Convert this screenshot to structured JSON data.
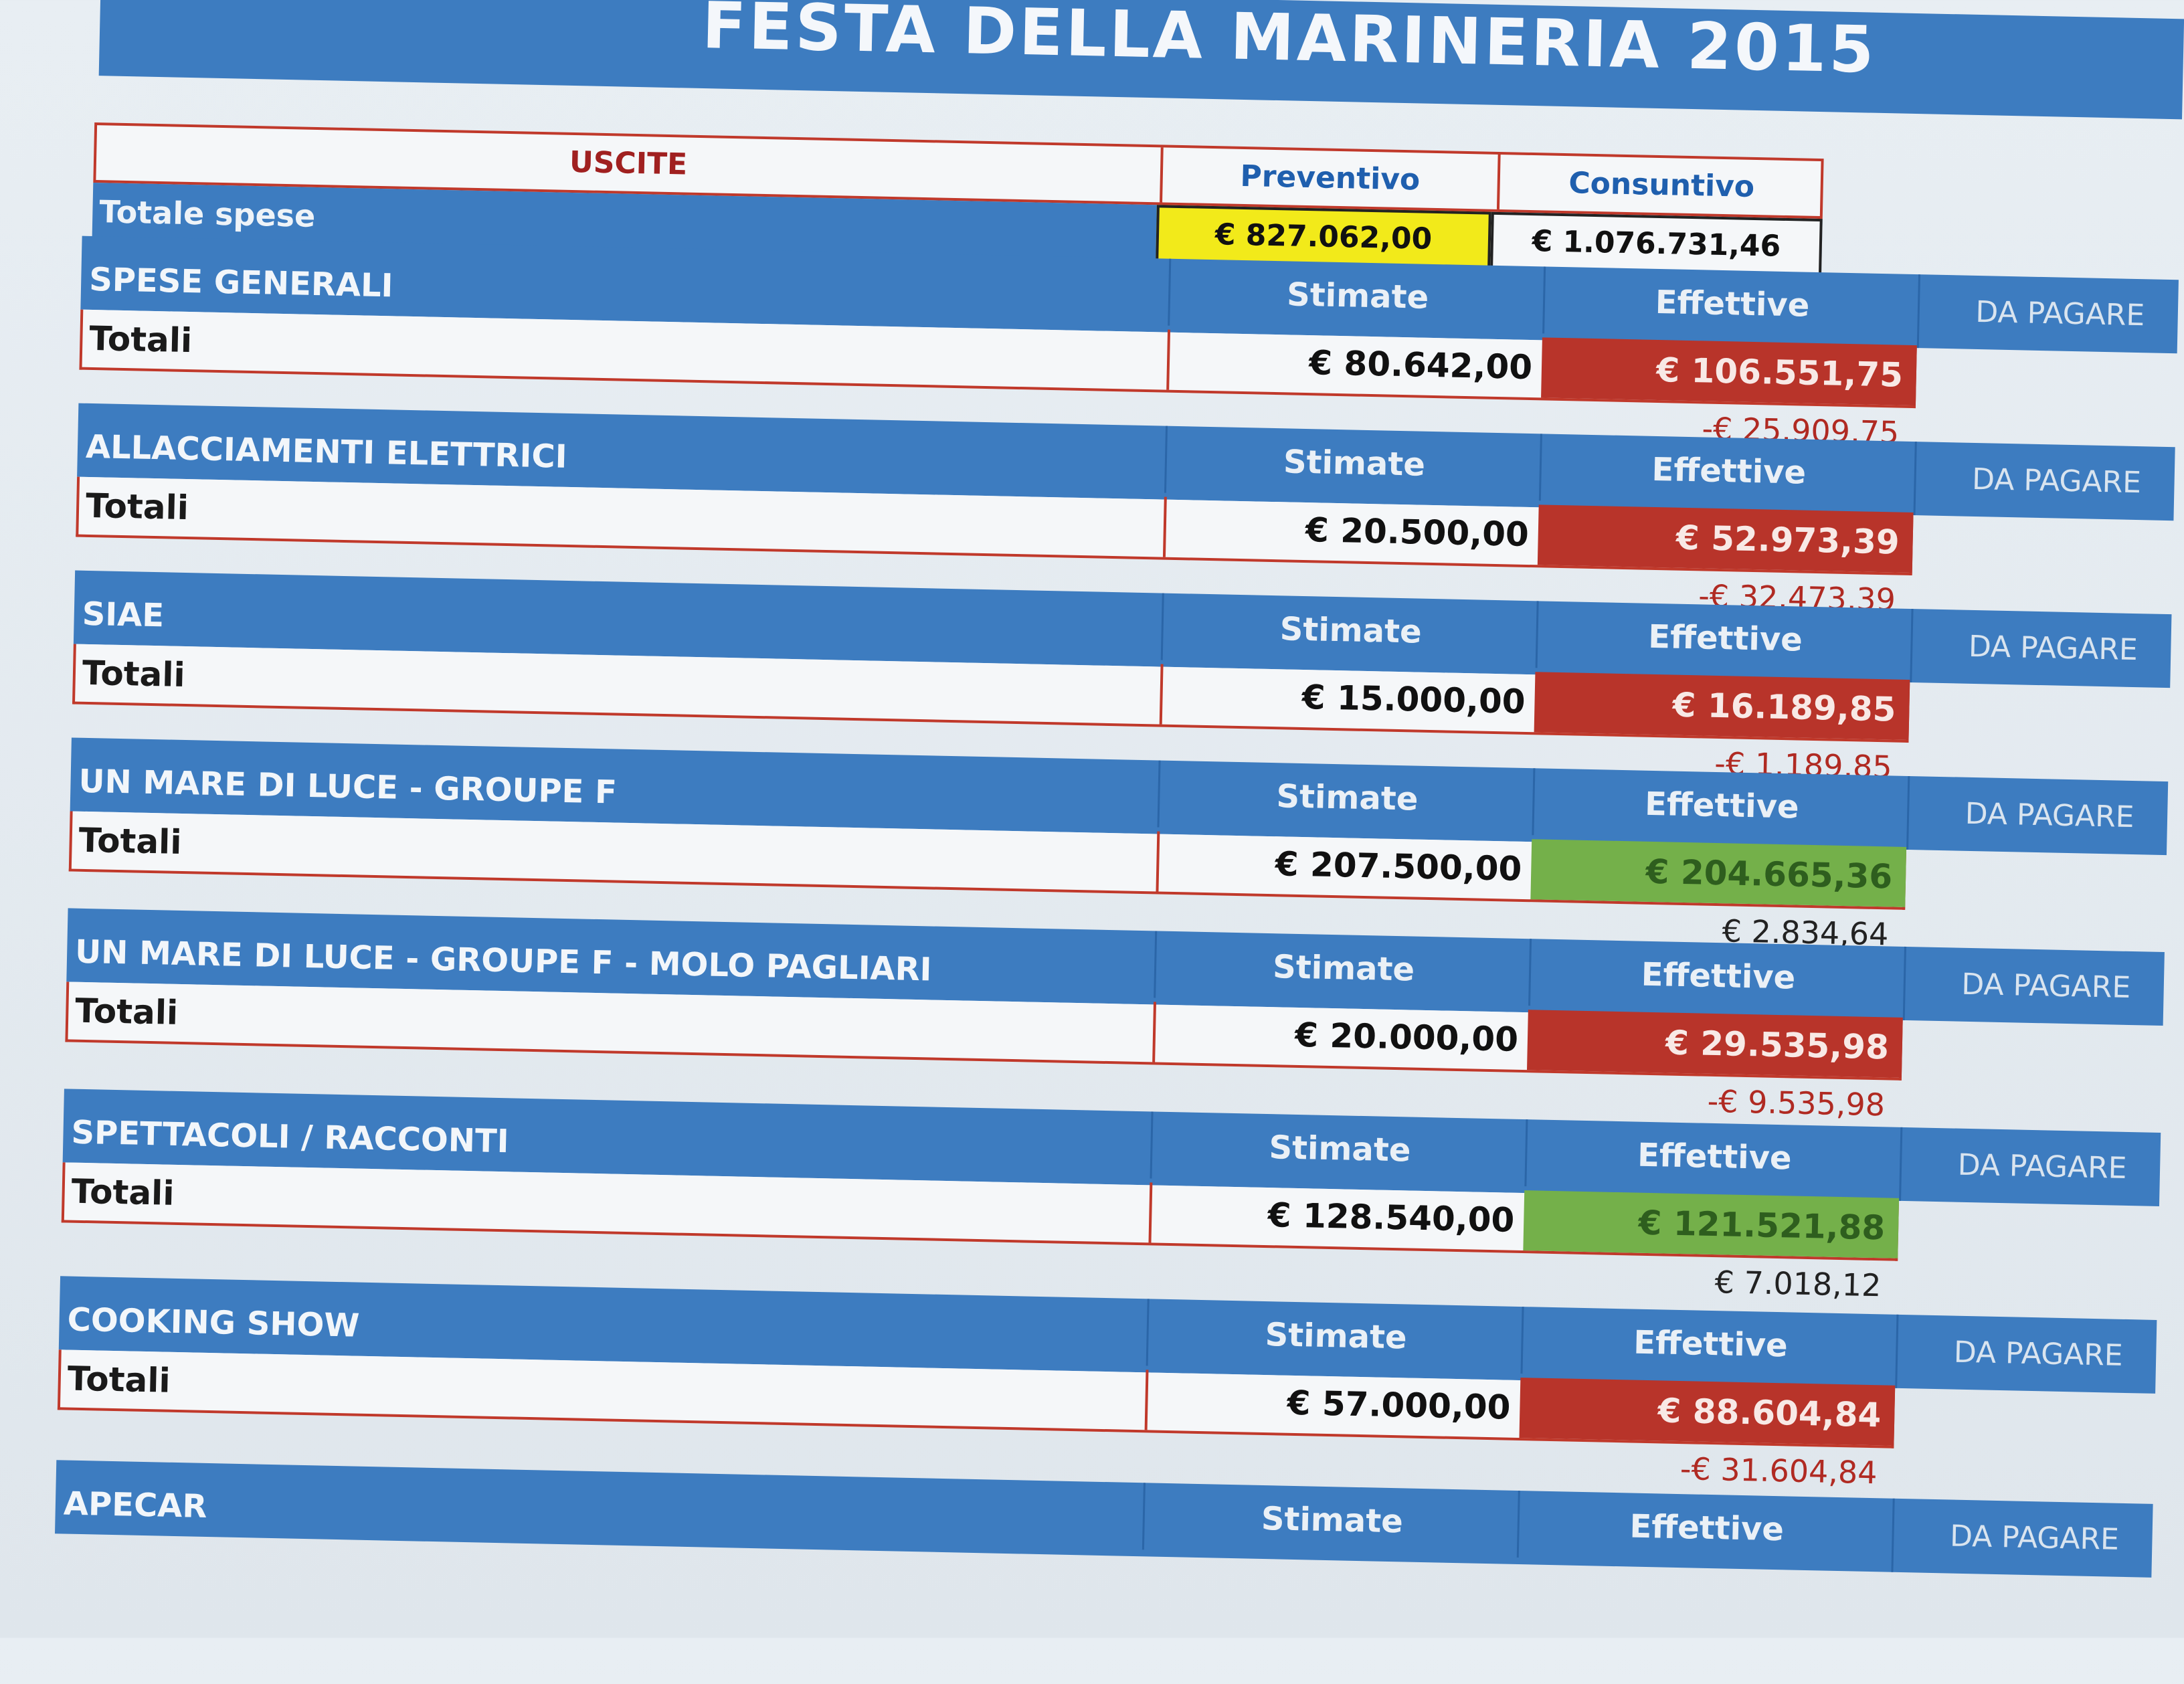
{
  "title": "FESTA DELLA MARINERIA 2015",
  "summary": {
    "uscite": "USCITE",
    "preventivo": "Preventivo",
    "consuntivo": "Consuntivo",
    "totale_label": "Totale spese",
    "totale_preventivo": "€ 827.062,00",
    "totale_consuntivo": "€ 1.076.731,46"
  },
  "headers": {
    "stimate": "Stimate",
    "effettive": "Effettive",
    "da_pagare": "DA PAGARE",
    "totali": "Totali"
  },
  "sections": [
    {
      "name": "SPESE GENERALI",
      "stimate": "€ 80.642,00",
      "effettive": "€ 106.551,75",
      "effettive_status": "over",
      "diff": "-€ 25.909,75"
    },
    {
      "name": "ALLACCIAMENTI ELETTRICI",
      "stimate": "€ 20.500,00",
      "effettive": "€ 52.973,39",
      "effettive_status": "over",
      "diff": "-€ 32.473,39"
    },
    {
      "name": "SIAE",
      "stimate": "€ 15.000,00",
      "effettive": "€ 16.189,85",
      "effettive_status": "over",
      "diff": "-€ 1.189,85"
    },
    {
      "name": "UN MARE DI LUCE - GROUPE F",
      "stimate": "€ 207.500,00",
      "effettive": "€ 204.665,36",
      "effettive_status": "under",
      "diff": "€ 2.834,64"
    },
    {
      "name": "UN MARE DI LUCE - GROUPE F - MOLO PAGLIARI",
      "stimate": "€ 20.000,00",
      "effettive": "€ 29.535,98",
      "effettive_status": "over",
      "diff": "-€ 9.535,98"
    },
    {
      "name": "SPETTACOLI / RACCONTI",
      "stimate": "€ 128.540,00",
      "effettive": "€ 121.521,88",
      "effettive_status": "under",
      "diff": "€ 7.018,12"
    },
    {
      "name": "COOKING SHOW",
      "stimate": "€ 57.000,00",
      "effettive": "€ 88.604,84",
      "effettive_status": "over",
      "diff": "-€ 31.604,84"
    },
    {
      "name": "APECAR",
      "stimate": "",
      "effettive": "",
      "effettive_status": "none",
      "diff": ""
    }
  ],
  "colors": {
    "header_blue": "#3d7cc0",
    "over_red": "#b8342a",
    "under_green": "#74b04a",
    "highlight_yellow": "#f2ea1a",
    "border_red": "#c0392b"
  }
}
